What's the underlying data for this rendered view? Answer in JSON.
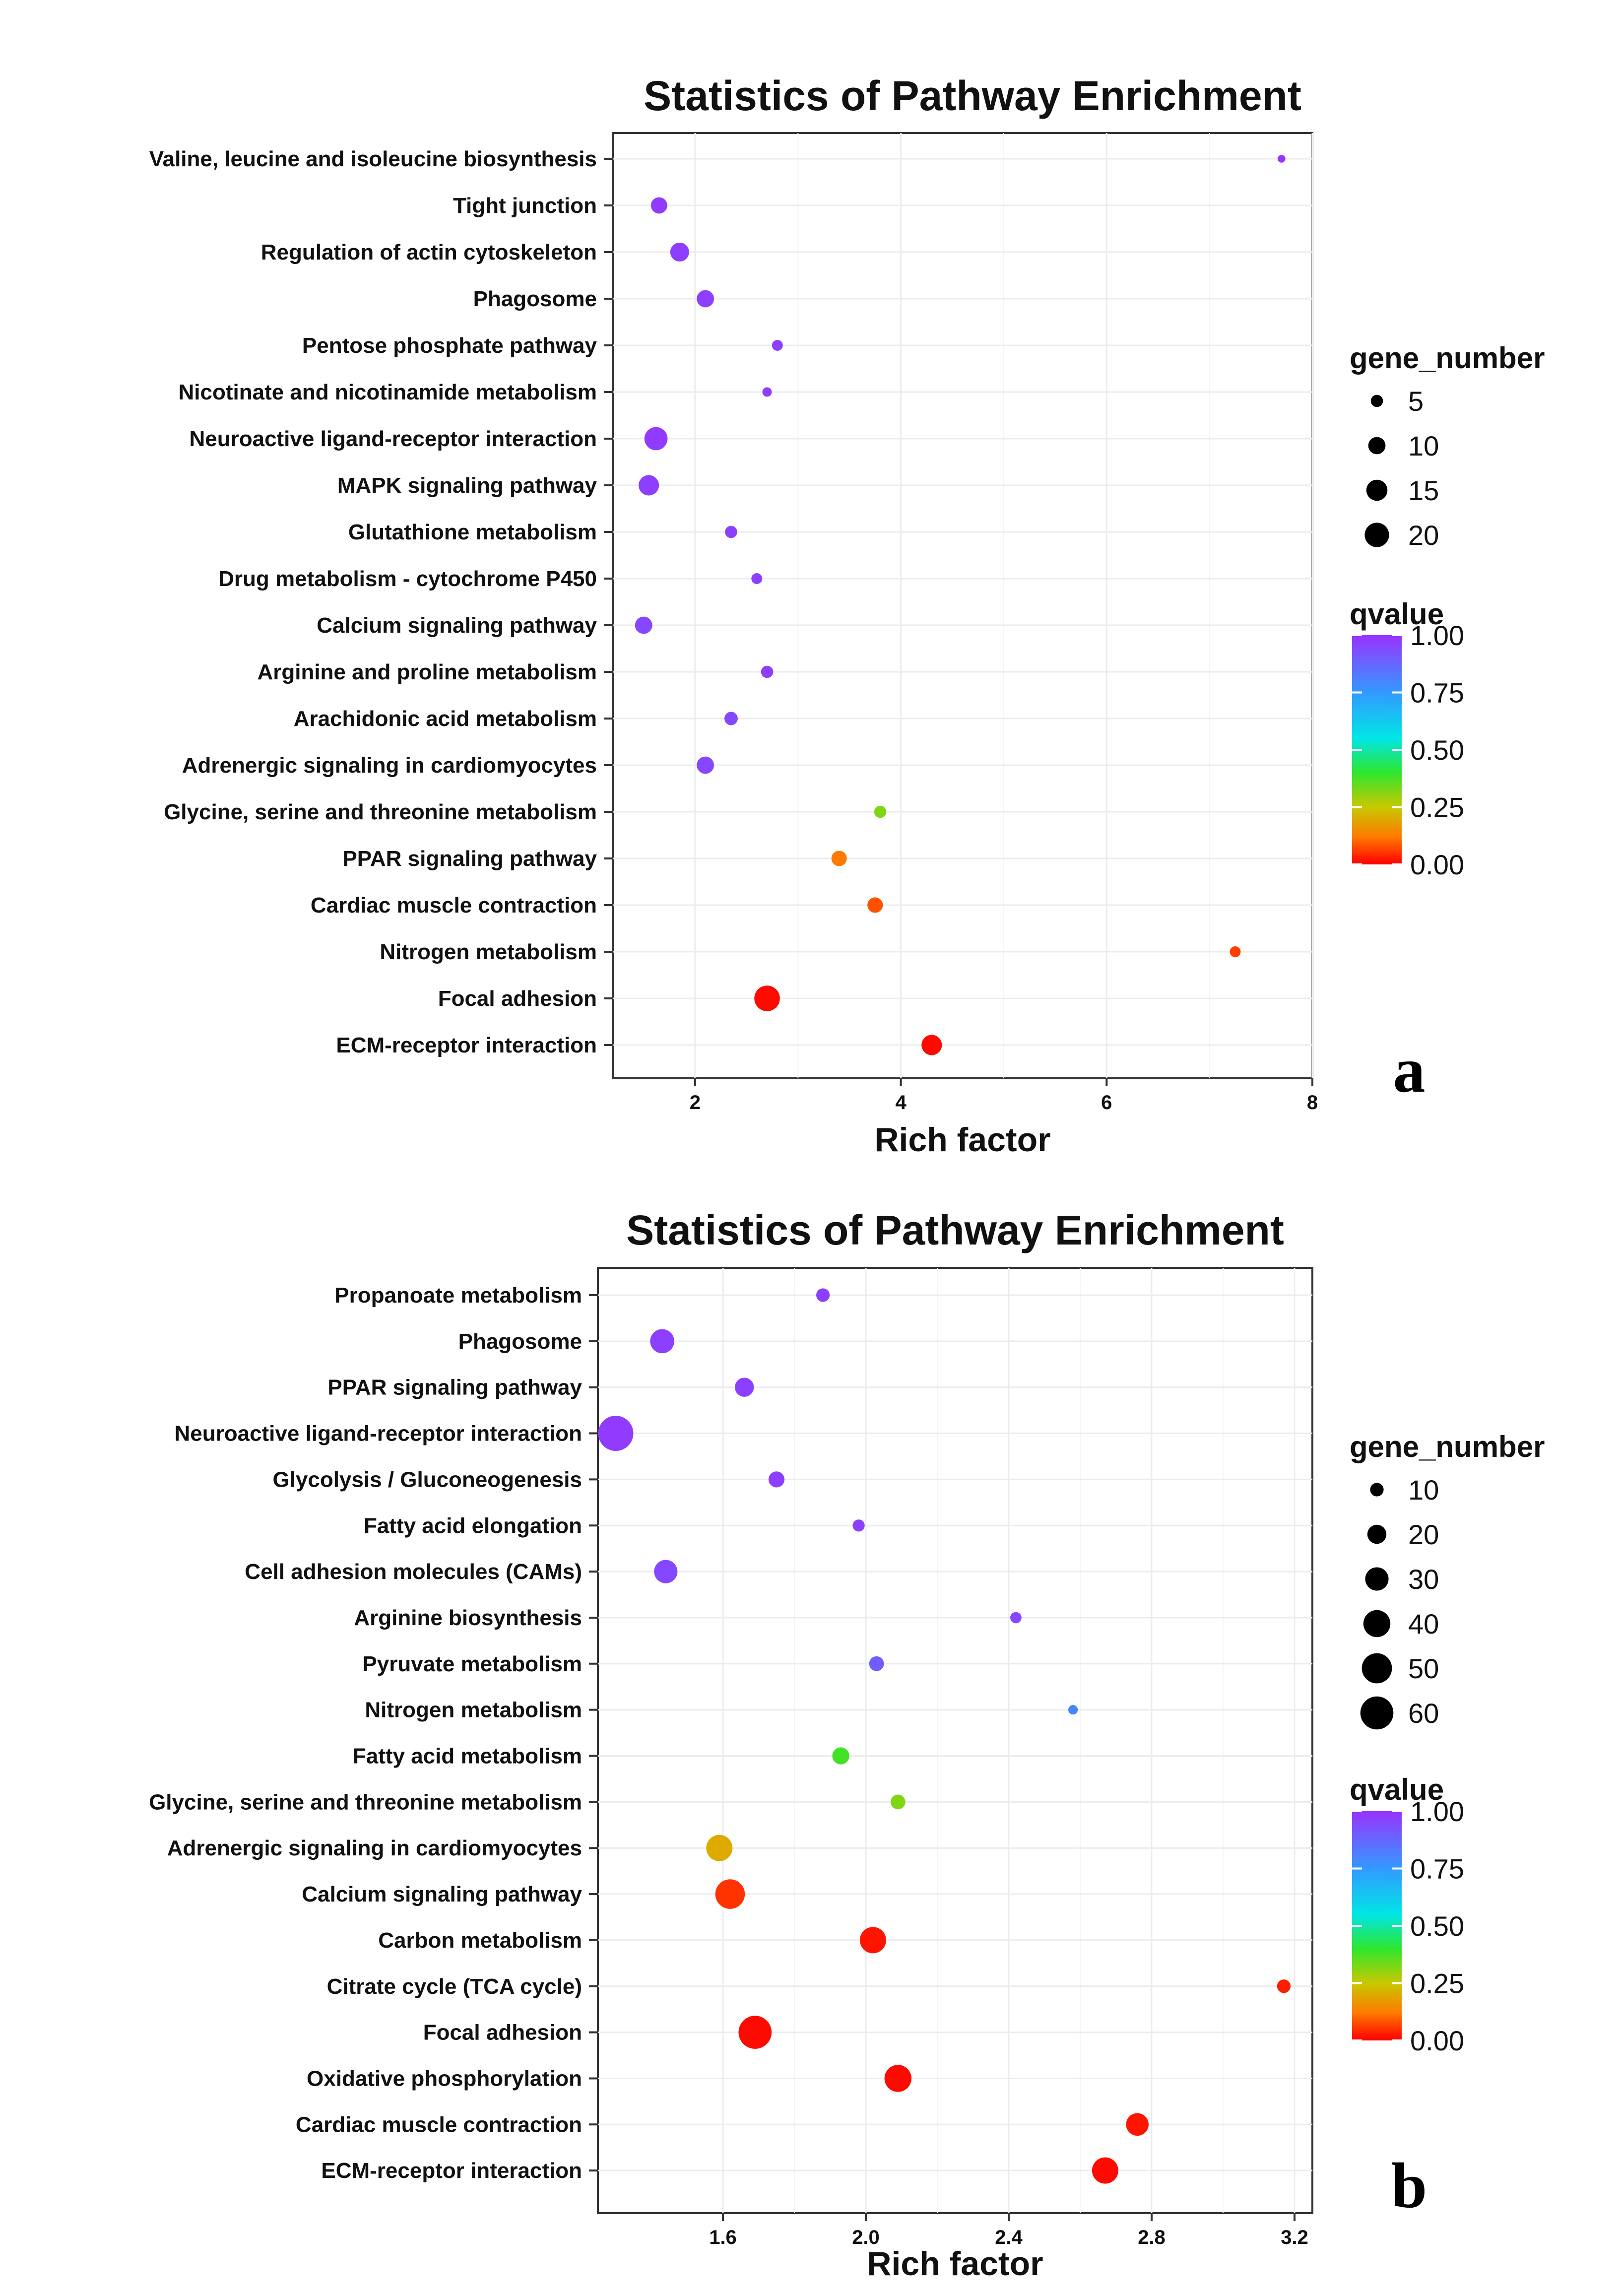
{
  "colorbar_gradient": [
    "#ff0000",
    "#ff7a00",
    "#c8c800",
    "#2ee62e",
    "#00e6e6",
    "#3399ff",
    "#9933ff"
  ],
  "chart_data": [
    {
      "panel_label": "a",
      "type": "scatter",
      "title": "Statistics of Pathway Enrichment",
      "xlabel": "Rich factor",
      "ylabel": "",
      "xlim": [
        1.2,
        8.0
      ],
      "xticks": [
        2,
        4,
        6,
        8
      ],
      "xtick_labels": [
        "2",
        "4",
        "6",
        "8"
      ],
      "grid": true,
      "size_legend": {
        "title": "gene_number",
        "values": [
          5,
          10,
          15,
          20
        ],
        "labels": [
          "5",
          "10",
          "15",
          "20"
        ]
      },
      "color_legend": {
        "title": "qvalue",
        "range": [
          0,
          1
        ],
        "tick_labels": [
          "1.00",
          "0.75",
          "0.50",
          "0.25",
          "0.00"
        ],
        "tick_values": [
          1.0,
          0.75,
          0.5,
          0.25,
          0.0
        ]
      },
      "categories": [
        "Valine, leucine and isoleucine biosynthesis",
        "Tight junction",
        "Regulation of actin cytoskeleton",
        "Phagosome",
        "Pentose phosphate pathway",
        "Nicotinate and nicotinamide metabolism",
        "Neuroactive ligand-receptor interaction",
        "MAPK signaling pathway",
        "Glutathione metabolism",
        "Drug metabolism - cytochrome P450",
        "Calcium signaling pathway",
        "Arginine and proline metabolism",
        "Arachidonic acid metabolism",
        "Adrenergic signaling in cardiomyocytes",
        "Glycine, serine and threonine metabolism",
        "PPAR signaling pathway",
        "Cardiac muscle contraction",
        "Nitrogen metabolism",
        "Focal adhesion",
        "ECM-receptor interaction"
      ],
      "points": [
        {
          "rich_factor": 7.7,
          "gene_number": 2,
          "qvalue": 1.0
        },
        {
          "rich_factor": 1.65,
          "gene_number": 9,
          "qvalue": 0.98
        },
        {
          "rich_factor": 1.85,
          "gene_number": 12,
          "qvalue": 0.97
        },
        {
          "rich_factor": 2.1,
          "gene_number": 10,
          "qvalue": 0.97
        },
        {
          "rich_factor": 2.8,
          "gene_number": 4,
          "qvalue": 0.97
        },
        {
          "rich_factor": 2.7,
          "gene_number": 3,
          "qvalue": 0.97
        },
        {
          "rich_factor": 1.62,
          "gene_number": 18,
          "qvalue": 0.98
        },
        {
          "rich_factor": 1.55,
          "gene_number": 14,
          "qvalue": 0.97
        },
        {
          "rich_factor": 2.35,
          "gene_number": 5,
          "qvalue": 0.97
        },
        {
          "rich_factor": 2.6,
          "gene_number": 4,
          "qvalue": 0.97
        },
        {
          "rich_factor": 1.5,
          "gene_number": 10,
          "qvalue": 0.95
        },
        {
          "rich_factor": 2.7,
          "gene_number": 5,
          "qvalue": 0.97
        },
        {
          "rich_factor": 2.35,
          "gene_number": 6,
          "qvalue": 0.95
        },
        {
          "rich_factor": 2.1,
          "gene_number": 10,
          "qvalue": 0.95
        },
        {
          "rich_factor": 3.8,
          "gene_number": 5,
          "qvalue": 0.32
        },
        {
          "rich_factor": 3.4,
          "gene_number": 8,
          "qvalue": 0.12
        },
        {
          "rich_factor": 3.75,
          "gene_number": 8,
          "qvalue": 0.08
        },
        {
          "rich_factor": 7.25,
          "gene_number": 4,
          "qvalue": 0.06
        },
        {
          "rich_factor": 2.7,
          "gene_number": 22,
          "qvalue": 0.01
        },
        {
          "rich_factor": 4.3,
          "gene_number": 14,
          "qvalue": 0.01
        }
      ]
    },
    {
      "panel_label": "b",
      "type": "scatter",
      "title": "Statistics of Pathway Enrichment",
      "xlabel": "Rich factor",
      "ylabel": "",
      "xlim": [
        1.25,
        3.25
      ],
      "xticks": [
        1.6,
        2.0,
        2.4,
        2.8,
        3.2
      ],
      "xtick_labels": [
        "1.6",
        "2.0",
        "2.4",
        "2.8",
        "3.2"
      ],
      "grid": true,
      "size_legend": {
        "title": "gene_number",
        "values": [
          10,
          20,
          30,
          40,
          50,
          60
        ],
        "labels": [
          "10",
          "20",
          "30",
          "40",
          "50",
          "60"
        ]
      },
      "color_legend": {
        "title": "qvalue",
        "range": [
          0,
          1
        ],
        "tick_labels": [
          "1.00",
          "0.75",
          "0.50",
          "0.25",
          "0.00"
        ],
        "tick_values": [
          1.0,
          0.75,
          0.5,
          0.25,
          0.0
        ]
      },
      "categories": [
        "Propanoate metabolism",
        "Phagosome",
        "PPAR signaling pathway",
        "Neuroactive ligand-receptor interaction",
        "Glycolysis / Gluconeogenesis",
        "Fatty acid elongation",
        "Cell adhesion molecules (CAMs)",
        "Arginine biosynthesis",
        "Pyruvate metabolism",
        "Nitrogen metabolism",
        "Fatty acid metabolism",
        "Glycine, serine and threonine metabolism",
        "Adrenergic signaling in cardiomyocytes",
        "Calcium signaling pathway",
        "Carbon metabolism",
        "Citrate cycle (TCA cycle)",
        "Focal adhesion",
        "Oxidative phosphorylation",
        "Cardiac muscle contraction",
        "ECM-receptor interaction"
      ],
      "points": [
        {
          "rich_factor": 1.88,
          "gene_number": 10,
          "qvalue": 0.97
        },
        {
          "rich_factor": 1.43,
          "gene_number": 32,
          "qvalue": 0.97
        },
        {
          "rich_factor": 1.66,
          "gene_number": 20,
          "qvalue": 0.97
        },
        {
          "rich_factor": 1.3,
          "gene_number": 68,
          "qvalue": 0.98
        },
        {
          "rich_factor": 1.75,
          "gene_number": 14,
          "qvalue": 0.97
        },
        {
          "rich_factor": 1.98,
          "gene_number": 8,
          "qvalue": 0.97
        },
        {
          "rich_factor": 1.44,
          "gene_number": 30,
          "qvalue": 0.95
        },
        {
          "rich_factor": 2.42,
          "gene_number": 7,
          "qvalue": 0.95
        },
        {
          "rich_factor": 2.03,
          "gene_number": 12,
          "qvalue": 0.9
        },
        {
          "rich_factor": 2.58,
          "gene_number": 5,
          "qvalue": 0.8
        },
        {
          "rich_factor": 1.93,
          "gene_number": 16,
          "qvalue": 0.38
        },
        {
          "rich_factor": 2.09,
          "gene_number": 12,
          "qvalue": 0.32
        },
        {
          "rich_factor": 1.59,
          "gene_number": 38,
          "qvalue": 0.2
        },
        {
          "rich_factor": 1.62,
          "gene_number": 48,
          "qvalue": 0.05
        },
        {
          "rich_factor": 2.02,
          "gene_number": 38,
          "qvalue": 0.02
        },
        {
          "rich_factor": 3.17,
          "gene_number": 10,
          "qvalue": 0.03
        },
        {
          "rich_factor": 1.69,
          "gene_number": 60,
          "qvalue": 0.01
        },
        {
          "rich_factor": 2.09,
          "gene_number": 40,
          "qvalue": 0.01
        },
        {
          "rich_factor": 2.76,
          "gene_number": 28,
          "qvalue": 0.02
        },
        {
          "rich_factor": 2.67,
          "gene_number": 38,
          "qvalue": 0.01
        }
      ]
    }
  ]
}
